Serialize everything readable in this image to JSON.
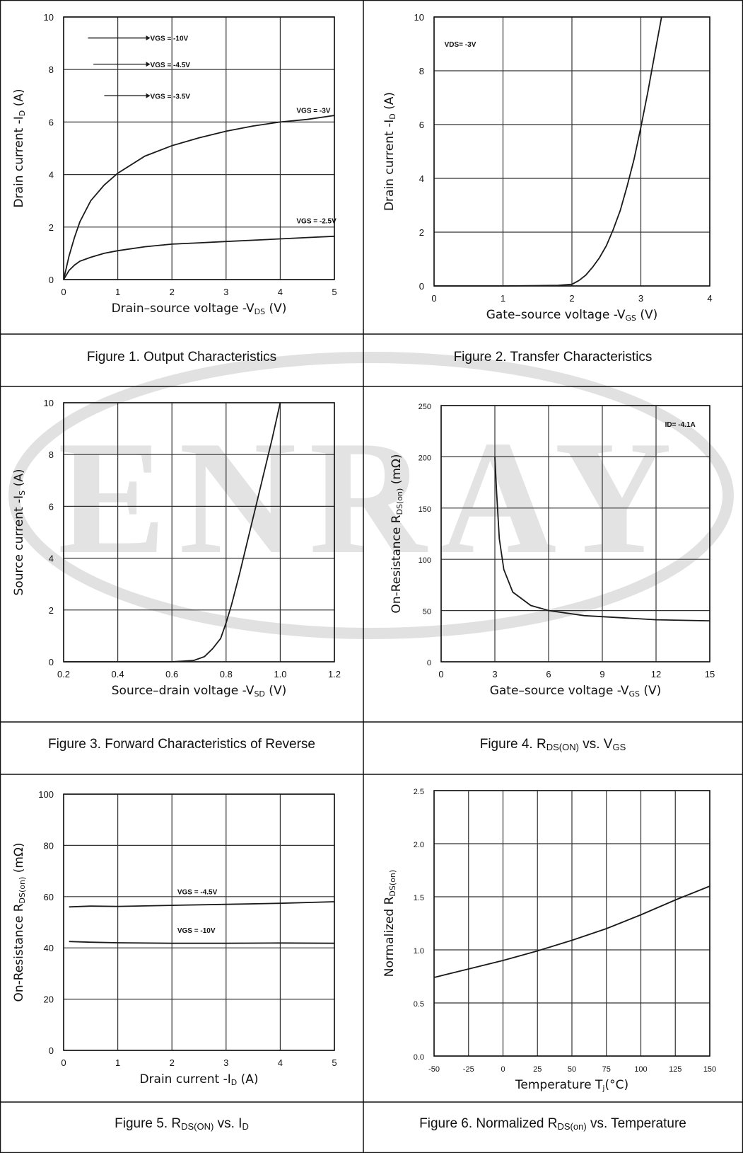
{
  "watermark": {
    "text": "ENRAY",
    "color": "#c9c9c9"
  },
  "colors": {
    "line": "#1a1a1a",
    "grid": "#333333",
    "frame": "#111111"
  },
  "chart_data": [
    {
      "type": "line",
      "xlim": [
        0,
        5
      ],
      "ylim": [
        0,
        10
      ],
      "xticks": [
        "0",
        "1",
        "2",
        "3",
        "4",
        "5"
      ],
      "yticks": [
        "0",
        "2",
        "4",
        "6",
        "8",
        "10"
      ],
      "xlabel": {
        "pre": "Drain–source voltage -V",
        "sub": "DS",
        "post": " (V)"
      },
      "ylabel": {
        "pre": "Drain current -I",
        "sub": "D",
        "post": " (A)"
      },
      "grid": true,
      "series": [
        {
          "name": "VGS = -3V",
          "x": [
            0,
            0.1,
            0.2,
            0.3,
            0.5,
            0.75,
            1,
            1.5,
            2,
            2.5,
            3,
            3.5,
            4,
            4.5,
            5
          ],
          "y": [
            0,
            0.9,
            1.6,
            2.2,
            3.0,
            3.6,
            4.05,
            4.7,
            5.1,
            5.4,
            5.65,
            5.85,
            6.0,
            6.1,
            6.25
          ]
        },
        {
          "name": "VGS = -2.5V",
          "x": [
            0,
            0.1,
            0.2,
            0.3,
            0.5,
            0.75,
            1,
            1.5,
            2,
            2.5,
            3,
            3.5,
            4,
            4.5,
            5
          ],
          "y": [
            0,
            0.35,
            0.55,
            0.7,
            0.85,
            1.0,
            1.1,
            1.25,
            1.35,
            1.4,
            1.45,
            1.5,
            1.55,
            1.6,
            1.65
          ]
        }
      ],
      "annotations": [
        {
          "text": "VGS = -10V",
          "x": 1.6,
          "y": 9.2,
          "arrow_from": 0.45
        },
        {
          "text": "VGS = -4.5V",
          "x": 1.6,
          "y": 8.2,
          "arrow_from": 0.55
        },
        {
          "text": "VGS = -3.5V",
          "x": 1.6,
          "y": 7.0,
          "arrow_from": 0.75
        },
        {
          "text": "VGS = -3V",
          "x": 4.3,
          "y": 6.45,
          "arrow_from": null
        },
        {
          "text": "VGS = -2.5V",
          "x": 4.3,
          "y": 2.25,
          "arrow_from": null
        }
      ],
      "caption": {
        "pre": "Figure 1. Output Characteristics",
        "sub1": "",
        "mid": "",
        "sub2": "",
        "post": ""
      }
    },
    {
      "type": "line",
      "xlim": [
        0,
        4
      ],
      "ylim": [
        0,
        10
      ],
      "xticks": [
        "0",
        "1",
        "2",
        "3",
        "4"
      ],
      "yticks": [
        "0",
        "2",
        "4",
        "6",
        "8",
        "10"
      ],
      "xlabel": {
        "pre": "Gate–source voltage -V",
        "sub": "GS",
        "post": " (V)"
      },
      "ylabel": {
        "pre": "Drain current -I",
        "sub": "D",
        "post": " (A)"
      },
      "grid": true,
      "series": [
        {
          "name": "VDS= -3V",
          "x": [
            0,
            1,
            1.8,
            2,
            2.1,
            2.2,
            2.3,
            2.4,
            2.5,
            2.6,
            2.7,
            2.8,
            2.9,
            3.0,
            3.1,
            3.2,
            3.3
          ],
          "y": [
            0,
            0,
            0.02,
            0.06,
            0.2,
            0.4,
            0.7,
            1.05,
            1.5,
            2.1,
            2.8,
            3.7,
            4.7,
            5.9,
            7.2,
            8.6,
            10
          ]
        }
      ],
      "annotations": [
        {
          "text": "VDS= -3V",
          "x": 0.15,
          "y": 9.0,
          "arrow_from": null
        }
      ],
      "caption": {
        "pre": "Figure 2. Transfer Characteristics",
        "sub1": "",
        "mid": "",
        "sub2": "",
        "post": ""
      }
    },
    {
      "type": "line",
      "xlim": [
        0.2,
        1.2
      ],
      "ylim": [
        0,
        10
      ],
      "xticks": [
        "0.2",
        "0.4",
        "0.6",
        "0.8",
        "1.0",
        "1.2"
      ],
      "yticks": [
        "0",
        "2",
        "4",
        "6",
        "8",
        "10"
      ],
      "xlabel": {
        "pre": "Source–drain voltage -V",
        "sub": "SD",
        "post": " (V)"
      },
      "ylabel": {
        "pre": "Source current -I",
        "sub": "S",
        "post": " (A)"
      },
      "grid": true,
      "series": [
        {
          "name": "",
          "x": [
            0.2,
            0.6,
            0.68,
            0.72,
            0.75,
            0.78,
            0.8,
            0.82,
            0.85,
            0.88,
            0.91,
            0.94,
            0.97,
            1.0
          ],
          "y": [
            0,
            0,
            0.05,
            0.2,
            0.5,
            0.9,
            1.5,
            2.2,
            3.4,
            4.7,
            6.0,
            7.3,
            8.6,
            10
          ]
        }
      ],
      "annotations": [],
      "caption": {
        "pre": "Figure 3. Forward Characteristics of Reverse",
        "sub1": "",
        "mid": "",
        "sub2": "",
        "post": ""
      }
    },
    {
      "type": "line",
      "xlim": [
        0,
        15
      ],
      "ylim": [
        0,
        250
      ],
      "xticks": [
        "0",
        "3",
        "6",
        "9",
        "12",
        "15"
      ],
      "yticks": [
        "0",
        "50",
        "100",
        "150",
        "200",
        "250"
      ],
      "xlabel": {
        "pre": "Gate–source voltage -V",
        "sub": "GS",
        "post": " (V)"
      },
      "ylabel": {
        "pre": "On-Resistance  R",
        "sub": "DS(on)",
        "post": " (mΩ)"
      },
      "grid": true,
      "series": [
        {
          "name": "ID= -4.1A",
          "x": [
            3,
            3.1,
            3.25,
            3.5,
            4,
            5,
            6,
            8,
            10,
            12,
            15
          ],
          "y": [
            200,
            165,
            120,
            90,
            68,
            55,
            50,
            45,
            43,
            41,
            40
          ]
        }
      ],
      "annotations": [
        {
          "text": "ID= -4.1A",
          "x": 12.5,
          "y": 232,
          "arrow_from": null
        }
      ],
      "caption": {
        "pre": "Figure 4. R",
        "sub1": "DS(ON)",
        "mid": "  vs. V",
        "sub2": "GS",
        "post": ""
      }
    },
    {
      "type": "line",
      "xlim": [
        0,
        5
      ],
      "ylim": [
        0,
        100
      ],
      "xticks": [
        "0",
        "1",
        "2",
        "3",
        "4",
        "5"
      ],
      "yticks": [
        "0",
        "20",
        "40",
        "60",
        "80",
        "100"
      ],
      "xlabel": {
        "pre": "Drain current -I",
        "sub": "D",
        "post": " (A)"
      },
      "ylabel": {
        "pre": "On-Resistance  R",
        "sub": "DS(on)",
        "post": " (mΩ)"
      },
      "grid": true,
      "series": [
        {
          "name": "VGS = -4.5V",
          "x": [
            0.1,
            0.5,
            1,
            2,
            3,
            4,
            5
          ],
          "y": [
            56,
            56.3,
            56.2,
            56.6,
            57,
            57.4,
            58
          ]
        },
        {
          "name": "VGS = -10V",
          "x": [
            0.1,
            0.5,
            1,
            2,
            3,
            4,
            5
          ],
          "y": [
            42.5,
            42.2,
            42,
            41.8,
            41.8,
            41.9,
            41.8
          ]
        }
      ],
      "annotations": [
        {
          "text": "VGS = -4.5V",
          "x": 2.1,
          "y": 62,
          "arrow_from": null
        },
        {
          "text": "VGS = -10V",
          "x": 2.1,
          "y": 47,
          "arrow_from": null
        }
      ],
      "caption": {
        "pre": "Figure 5. R",
        "sub1": "DS(ON)",
        "mid": " vs. I",
        "sub2": "D",
        "post": ""
      }
    },
    {
      "type": "line",
      "xlim": [
        -50,
        150
      ],
      "ylim": [
        0,
        2.5
      ],
      "xticks": [
        "-50",
        "-25",
        "0",
        "25",
        "50",
        "75",
        "100",
        "125",
        "150"
      ],
      "yticks": [
        "0.0",
        "0.5",
        "1.0",
        "1.5",
        "2.0",
        "2.5"
      ],
      "xlabel": {
        "pre": "Temperature T",
        "sub": "j",
        "post": "(°C)"
      },
      "ylabel": {
        "pre": "Normalized R",
        "sub": "DS(on)",
        "post": ""
      },
      "grid": true,
      "series": [
        {
          "name": "",
          "x": [
            -50,
            -25,
            0,
            25,
            50,
            75,
            100,
            125,
            150
          ],
          "y": [
            0.74,
            0.82,
            0.9,
            0.99,
            1.09,
            1.2,
            1.33,
            1.47,
            1.6
          ]
        }
      ],
      "annotations": [],
      "caption": {
        "pre": "Figure 6. Normalized R",
        "sub1": "DS(on)",
        "mid": " vs. Temperature",
        "sub2": "",
        "post": ""
      }
    }
  ]
}
